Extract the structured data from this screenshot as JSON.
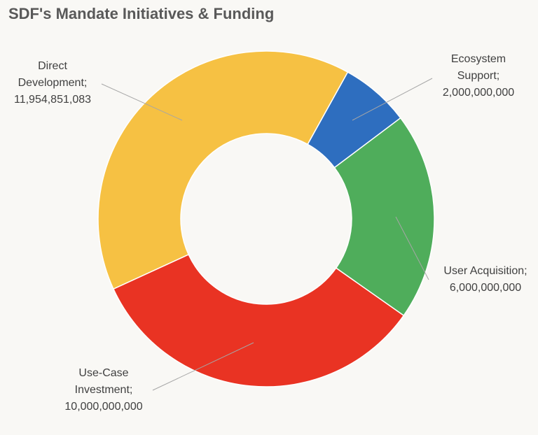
{
  "chart_data": {
    "type": "donut",
    "title": "SDF's Mandate Initiatives & Funding",
    "categories": [
      "Ecosystem Support",
      "User Acquisition",
      "Use-Case Investment",
      "Direct Development"
    ],
    "values": [
      2000000000,
      6000000000,
      10000000000,
      11954851083
    ],
    "value_labels": [
      "2,000,000,000",
      "6,000,000,000",
      "10,000,000,000",
      "11,954,851,083"
    ],
    "label_separator": ";",
    "colors": [
      "#2e6ebf",
      "#4fad5b",
      "#e93323",
      "#f6c143"
    ]
  }
}
